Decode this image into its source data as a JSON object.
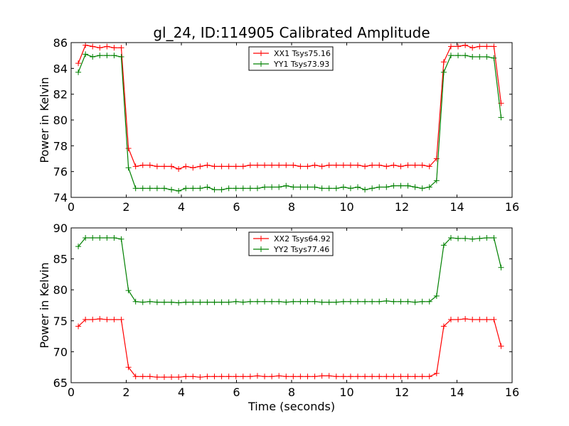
{
  "figure": {
    "title": "gl_24, ID:114905 Calibrated Amplitude",
    "xlabel": "Time (seconds)",
    "colors": {
      "xx": "#ff0000",
      "yy": "#008000"
    }
  },
  "chart_data": [
    {
      "type": "line",
      "title": "gl_24, ID:114905 Calibrated Amplitude",
      "xlabel": "",
      "ylabel": "Power in Kelvin",
      "xlim": [
        0,
        16
      ],
      "ylim": [
        74,
        86
      ],
      "xticks": [
        "0",
        "2",
        "4",
        "6",
        "8",
        "10",
        "12",
        "14",
        "16"
      ],
      "yticks": [
        "74",
        "76",
        "78",
        "80",
        "82",
        "84",
        "86"
      ],
      "grid": false,
      "legend": "top-center",
      "x": [
        0.26,
        0.52,
        0.78,
        1.04,
        1.3,
        1.56,
        1.82,
        2.08,
        2.34,
        2.6,
        2.86,
        3.12,
        3.38,
        3.64,
        3.9,
        4.16,
        4.42,
        4.68,
        4.94,
        5.2,
        5.46,
        5.72,
        5.98,
        6.24,
        6.5,
        6.76,
        7.02,
        7.28,
        7.54,
        7.8,
        8.06,
        8.32,
        8.58,
        8.84,
        9.1,
        9.36,
        9.62,
        9.88,
        10.14,
        10.4,
        10.66,
        10.92,
        11.18,
        11.44,
        11.7,
        11.96,
        12.22,
        12.48,
        12.74,
        13.0,
        13.26,
        13.52,
        13.78,
        14.04,
        14.3,
        14.56,
        14.82,
        15.08,
        15.34,
        15.6
      ],
      "series": [
        {
          "name": "XX1 Tsys75.16",
          "color": "#ff0000",
          "values": [
            84.4,
            85.8,
            85.7,
            85.6,
            85.7,
            85.6,
            85.6,
            77.8,
            76.4,
            76.5,
            76.5,
            76.4,
            76.4,
            76.4,
            76.2,
            76.4,
            76.3,
            76.4,
            76.5,
            76.4,
            76.4,
            76.4,
            76.4,
            76.4,
            76.5,
            76.5,
            76.5,
            76.5,
            76.5,
            76.5,
            76.5,
            76.4,
            76.4,
            76.5,
            76.4,
            76.5,
            76.5,
            76.5,
            76.5,
            76.5,
            76.4,
            76.5,
            76.5,
            76.4,
            76.5,
            76.4,
            76.5,
            76.5,
            76.5,
            76.4,
            77.0,
            84.5,
            85.7,
            85.7,
            85.8,
            85.6,
            85.7,
            85.7,
            85.7,
            81.3
          ]
        },
        {
          "name": "YY1 Tsys73.93",
          "color": "#008000",
          "values": [
            83.7,
            85.1,
            84.9,
            85.0,
            85.0,
            85.0,
            84.9,
            76.3,
            74.7,
            74.7,
            74.7,
            74.7,
            74.7,
            74.6,
            74.5,
            74.7,
            74.7,
            74.7,
            74.8,
            74.6,
            74.6,
            74.7,
            74.7,
            74.7,
            74.7,
            74.7,
            74.8,
            74.8,
            74.8,
            74.9,
            74.8,
            74.8,
            74.8,
            74.8,
            74.7,
            74.7,
            74.7,
            74.8,
            74.7,
            74.8,
            74.6,
            74.7,
            74.8,
            74.8,
            74.9,
            74.9,
            74.9,
            74.8,
            74.7,
            74.8,
            75.3,
            83.7,
            85.0,
            85.0,
            85.0,
            84.9,
            84.9,
            84.9,
            84.8,
            80.2
          ]
        }
      ]
    },
    {
      "type": "line",
      "title": "",
      "xlabel": "Time (seconds)",
      "ylabel": "Power in Kelvin",
      "xlim": [
        0,
        16
      ],
      "ylim": [
        65,
        90
      ],
      "xticks": [
        "0",
        "2",
        "4",
        "6",
        "8",
        "10",
        "12",
        "14",
        "16"
      ],
      "yticks": [
        "65",
        "70",
        "75",
        "80",
        "85",
        "90"
      ],
      "grid": false,
      "legend": "top-center",
      "x": [
        0.26,
        0.52,
        0.78,
        1.04,
        1.3,
        1.56,
        1.82,
        2.08,
        2.34,
        2.6,
        2.86,
        3.12,
        3.38,
        3.64,
        3.9,
        4.16,
        4.42,
        4.68,
        4.94,
        5.2,
        5.46,
        5.72,
        5.98,
        6.24,
        6.5,
        6.76,
        7.02,
        7.28,
        7.54,
        7.8,
        8.06,
        8.32,
        8.58,
        8.84,
        9.1,
        9.36,
        9.62,
        9.88,
        10.14,
        10.4,
        10.66,
        10.92,
        11.18,
        11.44,
        11.7,
        11.96,
        12.22,
        12.48,
        12.74,
        13.0,
        13.26,
        13.52,
        13.78,
        14.04,
        14.3,
        14.56,
        14.82,
        15.08,
        15.34,
        15.6
      ],
      "series": [
        {
          "name": "XX2 Tsys64.92",
          "color": "#ff0000",
          "values": [
            74.1,
            75.2,
            75.2,
            75.3,
            75.2,
            75.2,
            75.2,
            67.5,
            66.0,
            66.0,
            66.0,
            65.9,
            65.9,
            65.9,
            65.9,
            66.0,
            66.0,
            65.9,
            66.0,
            66.0,
            66.0,
            66.0,
            66.0,
            66.0,
            66.0,
            66.1,
            66.0,
            66.0,
            66.1,
            66.0,
            66.0,
            66.0,
            66.0,
            66.0,
            66.1,
            66.1,
            66.0,
            66.0,
            66.0,
            66.0,
            66.0,
            66.0,
            66.0,
            66.0,
            66.0,
            66.0,
            66.0,
            66.0,
            66.0,
            66.0,
            66.5,
            74.1,
            75.2,
            75.2,
            75.3,
            75.2,
            75.2,
            75.2,
            75.2,
            70.9
          ]
        },
        {
          "name": "YY2 Tsys77.46",
          "color": "#008000",
          "values": [
            87.0,
            88.4,
            88.4,
            88.4,
            88.4,
            88.4,
            88.2,
            79.9,
            78.1,
            78.0,
            78.1,
            78.0,
            78.0,
            78.0,
            77.9,
            78.0,
            78.0,
            78.0,
            78.0,
            78.0,
            78.0,
            78.0,
            78.1,
            78.0,
            78.1,
            78.1,
            78.1,
            78.1,
            78.1,
            78.0,
            78.1,
            78.1,
            78.1,
            78.1,
            78.0,
            78.0,
            78.0,
            78.1,
            78.1,
            78.1,
            78.1,
            78.1,
            78.1,
            78.2,
            78.1,
            78.1,
            78.1,
            78.0,
            78.1,
            78.1,
            79.0,
            87.2,
            88.4,
            88.3,
            88.3,
            88.2,
            88.3,
            88.4,
            88.4,
            83.6
          ]
        }
      ]
    }
  ]
}
